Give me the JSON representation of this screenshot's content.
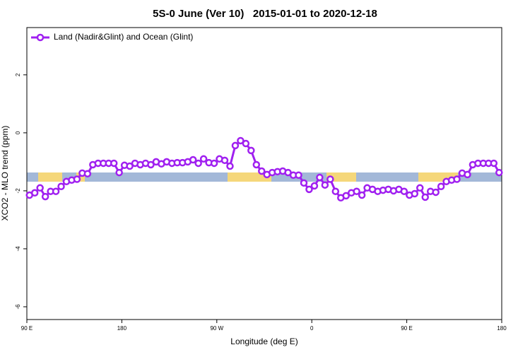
{
  "chart_data": {
    "type": "line",
    "title": "5S-0 June (Ver 10)   2015-01-01 to 2020-12-18",
    "x_label": "Longitude (deg E)",
    "y_label": "XCO2 - MLO trend (ppm)",
    "xlim": [
      90,
      540
    ],
    "ylim": [
      -6.44,
      3.63
    ],
    "xticks": [
      {
        "value": 90,
        "label": "90 E"
      },
      180,
      {
        "value": 270,
        "label": "90 W"
      },
      {
        "value": 360,
        "label": "0"
      },
      {
        "value": 450,
        "label": "90 E"
      },
      {
        "value": 540,
        "label": "180"
      }
    ],
    "yticks": [
      -6,
      -4,
      -2,
      0,
      2
    ],
    "legend": "top-left",
    "x": [
      92.5,
      97.5,
      102.5,
      107.5,
      112.5,
      117.5,
      122.5,
      127.5,
      132.5,
      137.5,
      142.5,
      147.5,
      152.5,
      157.5,
      162.5,
      167.5,
      172.5,
      177.5,
      182.5,
      187.5,
      192.5,
      197.5,
      202.5,
      207.5,
      212.5,
      217.5,
      222.5,
      227.5,
      232.5,
      237.5,
      242.5,
      247.5,
      252.5,
      257.5,
      262.5,
      267.5,
      272.5,
      277.5,
      282.5,
      287.5,
      292.5,
      297.5,
      302.5,
      307.5,
      312.5,
      317.5,
      322.5,
      327.5,
      332.5,
      337.5,
      342.5,
      347.5,
      352.5,
      357.5,
      362.5,
      367.5,
      372.5,
      377.5,
      382.5,
      387.5,
      392.5,
      397.5,
      402.5,
      407.5,
      412.5,
      417.5,
      422.5,
      427.5,
      432.5,
      437.5,
      442.5,
      447.5,
      452.5,
      457.5,
      462.5,
      467.5,
      472.5,
      477.5,
      482.5,
      487.5,
      492.5,
      497.5,
      502.5,
      507.5,
      512.5,
      517.5,
      522.5,
      527.5,
      532.5,
      537.5
    ],
    "series": [
      {
        "name": "Land (Nadir&Glint) and Ocean (Glint)",
        "color": "#a020f0",
        "values": [
          -2.15,
          -2.07,
          -1.9,
          -2.2,
          -2.02,
          -2.02,
          -1.85,
          -1.68,
          -1.63,
          -1.6,
          -1.39,
          -1.41,
          -1.1,
          -1.05,
          -1.05,
          -1.05,
          -1.05,
          -1.37,
          -1.12,
          -1.15,
          -1.05,
          -1.1,
          -1.05,
          -1.1,
          -1.0,
          -1.07,
          -1.0,
          -1.05,
          -1.03,
          -1.03,
          -1.0,
          -0.93,
          -1.05,
          -0.9,
          -1.03,
          -1.05,
          -0.9,
          -0.95,
          -1.15,
          -0.44,
          -0.27,
          -0.37,
          -0.61,
          -1.1,
          -1.32,
          -1.44,
          -1.37,
          -1.34,
          -1.32,
          -1.37,
          -1.46,
          -1.46,
          -1.73,
          -1.95,
          -1.83,
          -1.54,
          -1.8,
          -1.6,
          -2.02,
          -2.24,
          -2.17,
          -2.07,
          -2.02,
          -2.15,
          -1.9,
          -1.95,
          -2.02,
          -1.98,
          -1.95,
          -2.0,
          -1.95,
          -2.02,
          -2.15,
          -2.1,
          -1.9,
          -2.22,
          -2.02,
          -2.05,
          -1.85,
          -1.68,
          -1.63,
          -1.6,
          -1.39,
          -1.44,
          -1.1,
          -1.05,
          -1.05,
          -1.05,
          -1.05,
          -1.37
        ]
      }
    ]
  }
}
